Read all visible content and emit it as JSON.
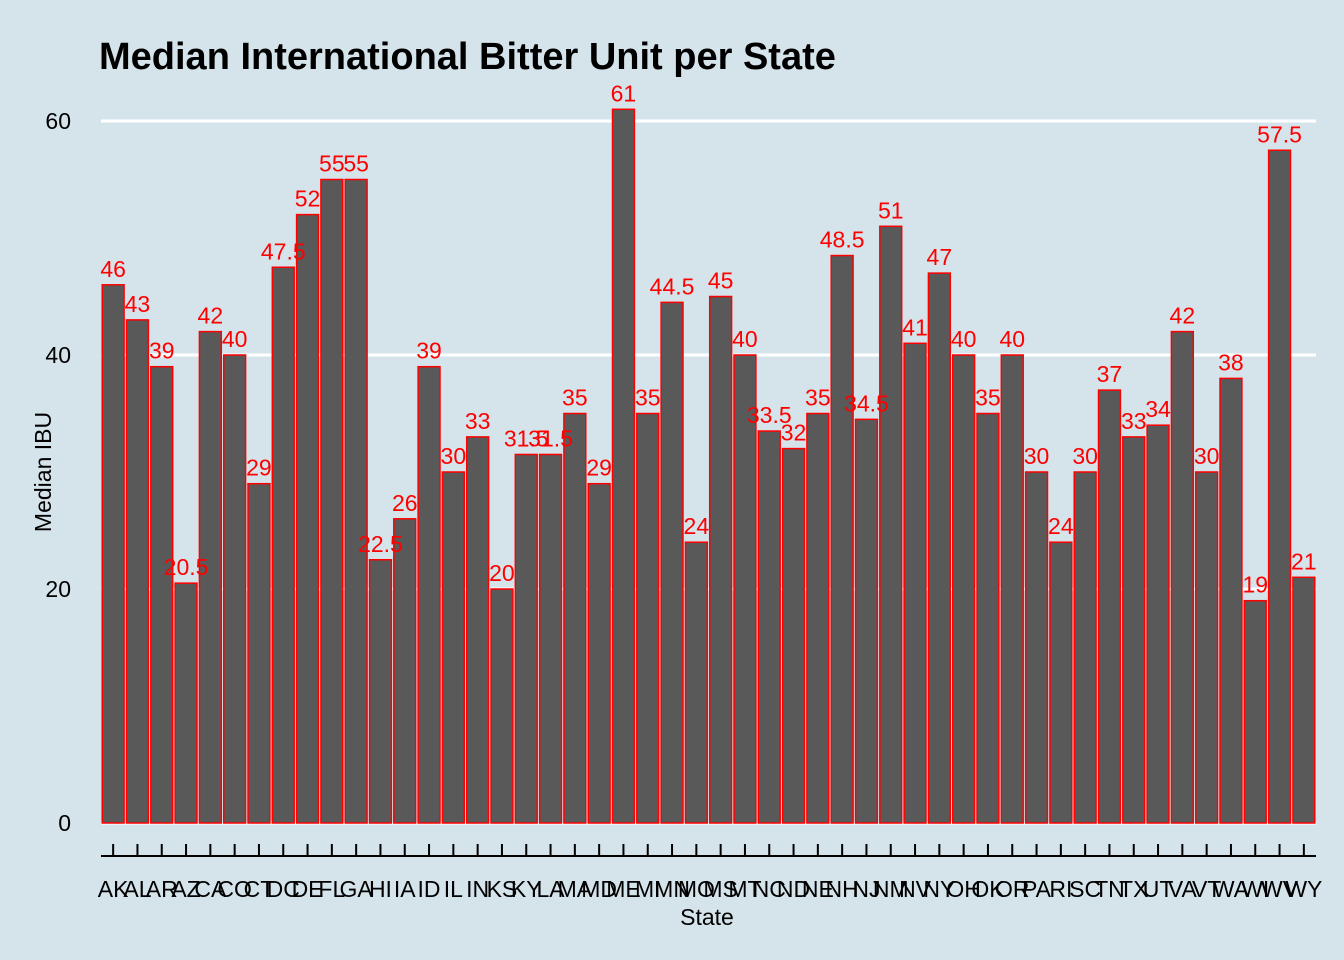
{
  "chart_data": {
    "type": "bar",
    "title": "Median International Bitter Unit per State",
    "xlabel": "State",
    "ylabel": "Median IBU",
    "ylim": [
      0,
      60
    ],
    "yticks": [
      0,
      20,
      40,
      60
    ],
    "grid": true,
    "bar_fill": "#595959",
    "bar_stroke": "#ff0000",
    "label_color": "#ff0000",
    "background": "#d5e4eb",
    "gridline_color": "#ffffff",
    "categories": [
      "AK",
      "AL",
      "AR",
      "AZ",
      "CA",
      "CO",
      "CT",
      "DC",
      "DE",
      "FL",
      "GA",
      "HI",
      "IA",
      "ID",
      "IL",
      "IN",
      "KS",
      "KY",
      "LA",
      "MA",
      "MD",
      "ME",
      "MI",
      "MN",
      "MO",
      "MS",
      "MT",
      "NC",
      "ND",
      "NE",
      "NH",
      "NJ",
      "NM",
      "NV",
      "NY",
      "OH",
      "OK",
      "OR",
      "PA",
      "RI",
      "SC",
      "TN",
      "TX",
      "UT",
      "VA",
      "VT",
      "WA",
      "WI",
      "WV",
      "WY"
    ],
    "values": [
      46,
      43,
      39,
      20.5,
      42,
      40,
      29,
      47.5,
      52,
      55,
      55,
      22.5,
      26,
      39,
      30,
      33,
      20,
      31.5,
      31.5,
      35,
      29,
      61,
      35,
      44.5,
      24,
      45,
      40,
      33.5,
      32,
      35,
      48.5,
      34.5,
      51,
      41,
      47,
      40,
      35,
      40,
      30,
      24,
      30,
      37,
      33,
      34,
      42,
      30,
      38,
      19,
      57.5,
      21
    ],
    "data_labels": [
      "46",
      "43",
      "39",
      "20.5",
      "42",
      "40",
      "29",
      "47.5",
      "52",
      "55",
      "55",
      "22.5",
      "26",
      "39",
      "30",
      "33",
      "20",
      "31.5",
      "31.5",
      "35",
      "29",
      "61",
      "35",
      "44.5",
      "24",
      "45",
      "40",
      "33.5",
      "32",
      "35",
      "48.5",
      "34.5",
      "51",
      "41",
      "47",
      "40",
      "35",
      "40",
      "30",
      "24",
      "30",
      "37",
      "33",
      "34",
      "42",
      "30",
      "38",
      "19",
      "57.5",
      "21"
    ]
  }
}
